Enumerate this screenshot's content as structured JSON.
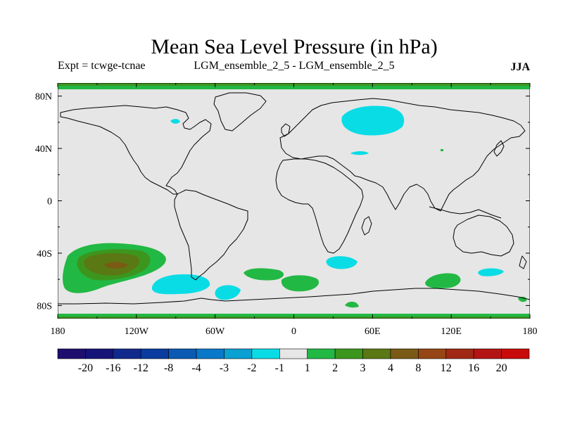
{
  "title": "Mean Sea Level Pressure (in hPa)",
  "experiment": "Expt = tcwge-tcnae",
  "comparison": "LGM_ensemble_2_5 - LGM_ensemble_2_5",
  "season": "JJA",
  "axes": {
    "x_ticks": [
      "180",
      "120W",
      "60W",
      "0",
      "60E",
      "120E",
      "180"
    ],
    "x_values": [
      -180,
      -120,
      -60,
      0,
      60,
      120,
      180
    ],
    "y_ticks": [
      "80N",
      "40N",
      "0",
      "40S",
      "80S"
    ],
    "y_values": [
      80,
      40,
      0,
      -40,
      -80
    ],
    "lon_range": [
      -180,
      180
    ],
    "lat_range": [
      -90,
      90
    ]
  },
  "colorbar": {
    "labels": [
      "-20",
      "-16",
      "-12",
      "-8",
      "-4",
      "-3",
      "-2",
      "-1",
      "1",
      "2",
      "3",
      "4",
      "8",
      "12",
      "16",
      "20"
    ],
    "colors": [
      "#1e0e6e",
      "#141478",
      "#0f2a8c",
      "#0a3ca0",
      "#0a5ab4",
      "#0a78c8",
      "#0aa0d2",
      "#0adce6",
      "#e6e6e6",
      "#22b844",
      "#3c961e",
      "#5a7814",
      "#7a5a14",
      "#964614",
      "#a02814",
      "#b41414",
      "#c80a0a"
    ]
  },
  "map": {
    "background_color": "#e6e6e6",
    "positive_1_color": "#22b844",
    "positive_2_color": "#3c961e",
    "positive_3_color": "#5a7814",
    "positive_4_color": "#7a5a14",
    "negative_1_color": "#0adce6"
  }
}
